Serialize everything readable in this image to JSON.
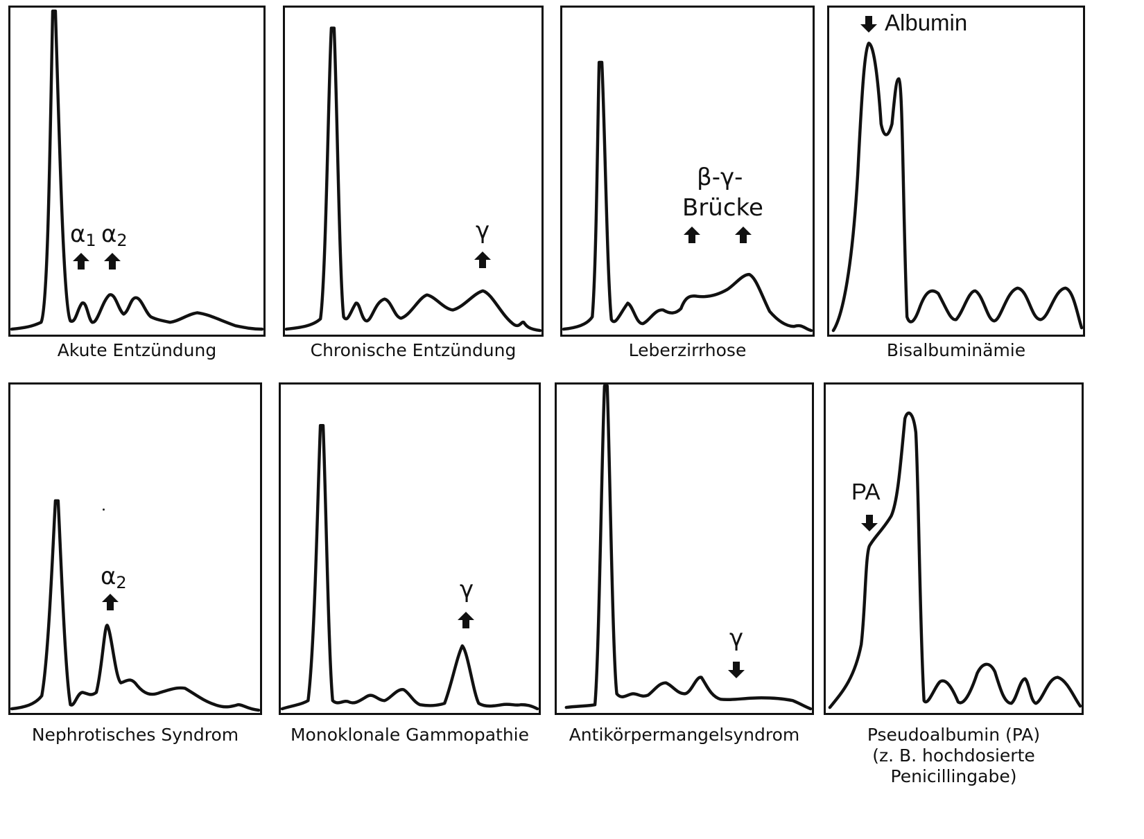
{
  "panels": [
    {
      "id": "p1",
      "caption": "Akute Entzündung",
      "labels": [
        {
          "base": "α",
          "sub": "1"
        },
        {
          "base": "α",
          "sub": "2"
        }
      ]
    },
    {
      "id": "p2",
      "caption": "Chronische Entzündung",
      "labels": [
        {
          "base": "γ"
        }
      ]
    },
    {
      "id": "p3",
      "caption": "Leberzirrhose",
      "labels": [
        {
          "line1": "β-γ-",
          "line2": "Brücke"
        }
      ]
    },
    {
      "id": "p4",
      "caption": "Bisalbuminämie",
      "labels": [
        {
          "text": "Albumin"
        }
      ]
    },
    {
      "id": "p5",
      "caption": "Nephrotisches Syndrom",
      "labels": [
        {
          "base": "α",
          "sub": "2"
        }
      ]
    },
    {
      "id": "p6",
      "caption": "Monoklonale Gammopathie",
      "labels": [
        {
          "base": "γ"
        }
      ]
    },
    {
      "id": "p7",
      "caption": "Antikörpermangelsyndrom",
      "labels": [
        {
          "base": "γ"
        }
      ]
    },
    {
      "id": "p8",
      "caption_lines": [
        "Pseudoalbumin (PA)",
        "(z. B. hochdosierte",
        "Penicillingabe)"
      ],
      "labels": [
        {
          "text": "PA"
        }
      ]
    }
  ],
  "colors": {
    "stroke": "#111111",
    "background": "#ffffff"
  },
  "icons": {
    "up": "up-arrow-icon",
    "down": "down-arrow-icon"
  }
}
